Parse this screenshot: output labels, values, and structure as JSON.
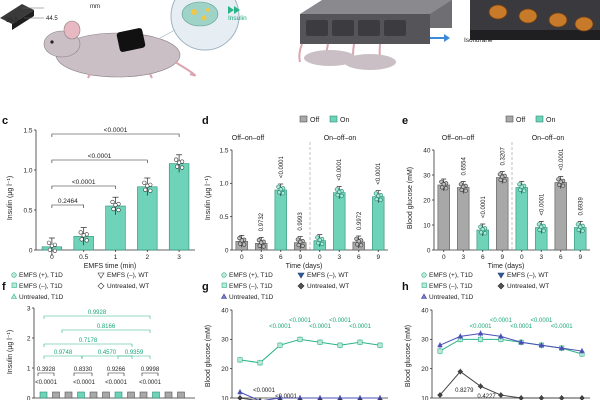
{
  "top": {
    "dims": [
      "35.0",
      "44.5"
    ],
    "mm": "mm",
    "insulin": "Insulin",
    "isoflurane": "Isoflurane"
  },
  "panels": [
    "c",
    "d",
    "e",
    "f",
    "g",
    "h"
  ],
  "legend_off_on": {
    "off": "Off",
    "on": "On"
  },
  "panel_d_headers": [
    "Off–on–off",
    "On–off–on"
  ],
  "panel_e_headers": [
    "Off–on–off",
    "On–off–on"
  ],
  "legend_f": [
    "EMFS (+), T1D",
    "EMFS (–), T1D",
    "Untreated, T1D",
    "EMFS (–), WT",
    "Untreated, WT"
  ],
  "legend_gh": [
    "EMFS (+), T1D",
    "EMFS (–), T1D",
    "Untreated, T1D",
    "EMFS (–), WT",
    "Untreated, WT"
  ],
  "chart_data": [
    {
      "panel": "c",
      "type": "bar",
      "categories": [
        "0",
        "0.5",
        "1",
        "2",
        "3"
      ],
      "values": [
        0.04,
        0.17,
        0.55,
        0.79,
        1.08
      ],
      "xlabel": "EMFS time (min)",
      "ylabel": "Insulin (µg l⁻¹)",
      "ylim": [
        0,
        1.5
      ],
      "yticks": [
        "0",
        "0.5",
        "1.0",
        "1.5"
      ],
      "pvalues": [
        "0.2464",
        "<0.0001",
        "<0.0001",
        "<0.0001"
      ]
    },
    {
      "panel": "d",
      "type": "bar",
      "categories": [
        "0",
        "3",
        "6",
        "9",
        "0",
        "3",
        "6",
        "9"
      ],
      "values": [
        0.13,
        0.1,
        0.9,
        0.11,
        0.14,
        0.86,
        0.12,
        0.8
      ],
      "states": [
        "off",
        "off",
        "on",
        "off",
        "on",
        "on",
        "off",
        "on"
      ],
      "xlabel": "Time (days)",
      "ylabel": "Insulin (µg l⁻¹)",
      "ylim": [
        0,
        1.5
      ],
      "yticks": [
        "0",
        "0.5",
        "1.0",
        "1.5"
      ],
      "pvalues": [
        "0.9732",
        "<0.0001",
        "0.9993",
        "<0.0001",
        "0.9972",
        "<0.0001"
      ]
    },
    {
      "panel": "e",
      "type": "bar",
      "categories": [
        "0",
        "3",
        "6",
        "9",
        "0",
        "3",
        "6",
        "9"
      ],
      "values": [
        26,
        25,
        8,
        29,
        25,
        9,
        27,
        9
      ],
      "states": [
        "off",
        "off",
        "on",
        "off",
        "on",
        "on",
        "off",
        "on"
      ],
      "xlabel": "Time (days)",
      "ylabel": "Blood glucose (mM)",
      "ylim": [
        0,
        40
      ],
      "yticks": [
        "0",
        "10",
        "20",
        "30",
        "40"
      ],
      "pvalues": [
        "0.6554",
        "<0.0001",
        "0.3207",
        "<0.0001",
        "<0.0001",
        "0.6939"
      ]
    },
    {
      "panel": "f",
      "type": "bar",
      "ylabel": "Insulin (µg l⁻¹)",
      "yticks": [
        "0",
        "1",
        "2",
        "3"
      ],
      "pvalues": [
        "0.9928",
        "0.8166",
        "0.7178",
        "0.4570",
        "0.9748",
        "0.9359",
        "0.3928",
        "0.8330",
        "0.9266",
        "0.9998",
        "<0.0001",
        "<0.0001",
        "<0.0001",
        "<0.0001"
      ]
    },
    {
      "panel": "g",
      "type": "line",
      "ylabel": "Blood glucose (mM)",
      "yticks": [
        "10",
        "20",
        "30",
        "40"
      ],
      "pvalues": [
        "<0.0001",
        "<0.0001",
        "<0.0001",
        "<0.0001",
        "<0.0001",
        "<0.0001",
        "<0.0001"
      ]
    },
    {
      "panel": "h",
      "type": "line",
      "ylabel": "Blood glucose (mM)",
      "yticks": [
        "10",
        "20",
        "30",
        "40"
      ],
      "pvalues": [
        "<0.0001",
        "<0.0001",
        "<0.0001",
        "<0.0001",
        "<0.0001",
        "0.8279",
        "0.4227"
      ]
    }
  ]
}
